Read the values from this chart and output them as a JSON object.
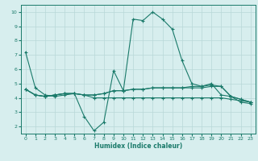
{
  "title": "",
  "xlabel": "Humidex (Indice chaleur)",
  "ylabel": "",
  "bg_color": "#d7eeee",
  "line_color": "#1a7a6a",
  "grid_color": "#b8d8d8",
  "xlim": [
    -0.5,
    23.5
  ],
  "ylim": [
    1.5,
    10.5
  ],
  "yticks": [
    2,
    3,
    4,
    5,
    6,
    7,
    8,
    9,
    10
  ],
  "xticks": [
    0,
    1,
    2,
    3,
    4,
    5,
    6,
    7,
    8,
    9,
    10,
    11,
    12,
    13,
    14,
    15,
    16,
    17,
    18,
    19,
    20,
    21,
    22,
    23
  ],
  "series": [
    {
      "x": [
        0,
        1,
        2,
        3,
        4,
        5,
        6,
        7,
        8,
        9,
        10,
        11,
        12,
        13,
        14,
        15,
        16,
        17,
        18,
        19,
        20,
        21,
        22,
        23
      ],
      "y": [
        7.2,
        4.7,
        4.2,
        4.1,
        4.2,
        4.3,
        2.7,
        1.7,
        2.3,
        5.9,
        4.5,
        9.5,
        9.4,
        10.0,
        9.5,
        8.8,
        6.6,
        5.0,
        4.8,
        5.0,
        4.2,
        4.1,
        3.7,
        3.6
      ]
    },
    {
      "x": [
        0,
        1,
        2,
        3,
        4,
        5,
        6,
        7,
        8,
        9,
        10,
        11,
        12,
        13,
        14,
        15,
        16,
        17,
        18,
        19,
        20,
        21,
        22,
        23
      ],
      "y": [
        4.6,
        4.2,
        4.1,
        4.2,
        4.3,
        4.3,
        4.2,
        4.2,
        4.3,
        4.5,
        4.5,
        4.6,
        4.6,
        4.7,
        4.7,
        4.7,
        4.7,
        4.7,
        4.7,
        4.8,
        4.8,
        4.1,
        3.9,
        3.7
      ]
    },
    {
      "x": [
        0,
        1,
        2,
        3,
        4,
        5,
        6,
        7,
        8,
        9,
        10,
        11,
        12,
        13,
        14,
        15,
        16,
        17,
        18,
        19,
        20,
        21,
        22,
        23
      ],
      "y": [
        4.6,
        4.2,
        4.1,
        4.2,
        4.3,
        4.3,
        4.2,
        4.2,
        4.3,
        4.5,
        4.5,
        4.6,
        4.6,
        4.7,
        4.7,
        4.7,
        4.7,
        4.8,
        4.8,
        4.9,
        4.8,
        4.1,
        3.9,
        3.7
      ]
    },
    {
      "x": [
        0,
        1,
        2,
        3,
        4,
        5,
        6,
        7,
        8,
        9,
        10,
        11,
        12,
        13,
        14,
        15,
        16,
        17,
        18,
        19,
        20,
        21,
        22,
        23
      ],
      "y": [
        4.6,
        4.2,
        4.1,
        4.2,
        4.3,
        4.3,
        4.2,
        4.0,
        4.0,
        4.0,
        4.0,
        4.0,
        4.0,
        4.0,
        4.0,
        4.0,
        4.0,
        4.0,
        4.0,
        4.0,
        4.0,
        3.9,
        3.8,
        3.7
      ]
    }
  ]
}
